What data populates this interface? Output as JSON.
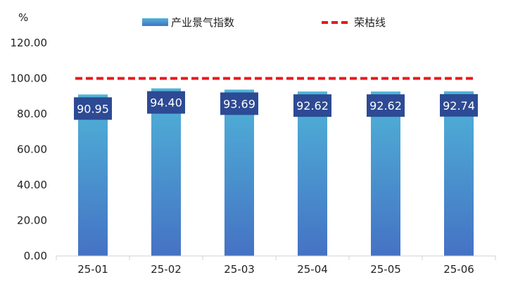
{
  "chart_data": {
    "type": "bar",
    "unit_label": "%",
    "categories": [
      "25-01",
      "25-02",
      "25-03",
      "25-04",
      "25-05",
      "25-06"
    ],
    "series": [
      {
        "name": "产业景气指数",
        "type": "bar",
        "values": [
          90.95,
          94.4,
          93.69,
          92.62,
          92.62,
          92.74
        ],
        "data_labels": [
          "90.95",
          "94.40",
          "93.69",
          "92.62",
          "92.62",
          "92.74"
        ],
        "color_top": "#4fb4d8",
        "color_bottom": "#4572c4"
      },
      {
        "name": "荣枯线",
        "type": "line",
        "style": "dashed",
        "values": [
          100,
          100,
          100,
          100,
          100,
          100
        ],
        "color": "#e8191c"
      }
    ],
    "y_ticks": [
      "0.00",
      "20.00",
      "40.00",
      "60.00",
      "80.00",
      "100.00",
      "120.00"
    ],
    "ylim": [
      0,
      120
    ],
    "grid": false,
    "legend_position": "top",
    "data_label_bg": "#2d4a94"
  }
}
